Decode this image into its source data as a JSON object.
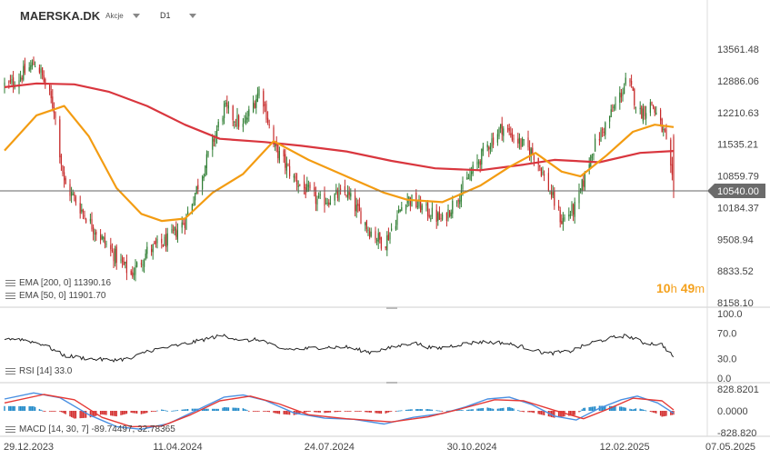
{
  "header": {
    "symbol": "MAERSKA.DK",
    "instrument_type": "Akcje",
    "timeframe": "D1"
  },
  "countdown": {
    "hours": "10",
    "hours_unit": "h",
    "minutes": "49",
    "minutes_unit": "m"
  },
  "legend": {
    "ema200": "EMA [200, 0] 11390.16",
    "ema50": "EMA [50, 0] 11901.70",
    "rsi": "RSI [14] 33.0",
    "macd": "MACD [14, 30, 7] -89.74497, 32.78365"
  },
  "colors": {
    "bull": "#2e7d32",
    "bear": "#c62828",
    "ema200": "#d9363e",
    "ema50": "#f39c12",
    "rsi": "#222222",
    "macd_line": "#4a90e2",
    "signal_line": "#e53935",
    "hist_pos": "#1e88c8",
    "hist_neg": "#d32f2f",
    "price_tag": "#6b6b6b"
  },
  "chart_data": [
    {
      "type": "candlestick",
      "panel": "price",
      "title": "MAERSKA.DK",
      "y_ticks": [
        13561.48,
        12886.06,
        12210.63,
        11535.21,
        10859.79,
        10184.37,
        9508.94,
        8833.52,
        8158.1
      ],
      "ylim": [
        8158.1,
        13561.48
      ],
      "last_price": 10540.0,
      "x_ticks": [
        "29.12.2023",
        "11.04.2024",
        "24.07.2024",
        "30.10.2024",
        "12.02.2025",
        "07.05.2025"
      ],
      "close_anchors": [
        [
          "2024-01-02",
          12800
        ],
        [
          "2024-01-20",
          13300
        ],
        [
          "2024-02-01",
          12300
        ],
        [
          "2024-02-08",
          10700
        ],
        [
          "2024-02-25",
          9900
        ],
        [
          "2024-03-10",
          9300
        ],
        [
          "2024-03-25",
          8750
        ],
        [
          "2024-04-05",
          9250
        ],
        [
          "2024-04-20",
          9500
        ],
        [
          "2024-05-01",
          9900
        ],
        [
          "2024-05-15",
          11100
        ],
        [
          "2024-05-28",
          12300
        ],
        [
          "2024-06-10",
          11900
        ],
        [
          "2024-06-22",
          12750
        ],
        [
          "2024-07-01",
          11500
        ],
        [
          "2024-07-15",
          10800
        ],
        [
          "2024-08-01",
          10300
        ],
        [
          "2024-08-20",
          10500
        ],
        [
          "2024-09-05",
          9700
        ],
        [
          "2024-09-15",
          9400
        ],
        [
          "2024-09-30",
          10400
        ],
        [
          "2024-10-10",
          10200
        ],
        [
          "2024-10-25",
          9900
        ],
        [
          "2024-11-10",
          10700
        ],
        [
          "2024-11-25",
          11500
        ],
        [
          "2024-12-05",
          11900
        ],
        [
          "2024-12-20",
          11500
        ],
        [
          "2024-12-28",
          11300
        ],
        [
          "2025-01-06",
          10600
        ],
        [
          "2025-01-15",
          9900
        ],
        [
          "2025-01-25",
          10200
        ],
        [
          "2025-02-05",
          11400
        ],
        [
          "2025-02-20",
          12300
        ],
        [
          "2025-03-01",
          12900
        ],
        [
          "2025-03-10",
          12200
        ],
        [
          "2025-03-18",
          12400
        ],
        [
          "2025-03-27",
          11700
        ],
        [
          "2025-04-02",
          10540
        ]
      ],
      "series": [
        {
          "name": "EMA [200, 0]",
          "points": [
            [
              "2023-12-29",
              12750
            ],
            [
              "2024-01-20",
              12830
            ],
            [
              "2024-02-15",
              12810
            ],
            [
              "2024-03-10",
              12650
            ],
            [
              "2024-04-05",
              12350
            ],
            [
              "2024-05-01",
              11950
            ],
            [
              "2024-05-25",
              11650
            ],
            [
              "2024-06-25",
              11580
            ],
            [
              "2024-07-20",
              11500
            ],
            [
              "2024-08-20",
              11380
            ],
            [
              "2024-09-20",
              11180
            ],
            [
              "2024-10-20",
              11020
            ],
            [
              "2024-11-20",
              10980
            ],
            [
              "2024-12-20",
              11100
            ],
            [
              "2025-01-10",
              11200
            ],
            [
              "2025-02-10",
              11150
            ],
            [
              "2025-03-10",
              11350
            ],
            [
              "2025-04-02",
              11390
            ]
          ]
        },
        {
          "name": "EMA [50, 0]",
          "points": [
            [
              "2023-12-29",
              11400
            ],
            [
              "2024-01-20",
              12150
            ],
            [
              "2024-02-08",
              12350
            ],
            [
              "2024-02-25",
              11700
            ],
            [
              "2024-03-15",
              10600
            ],
            [
              "2024-04-01",
              10050
            ],
            [
              "2024-04-15",
              9900
            ],
            [
              "2024-05-01",
              9950
            ],
            [
              "2024-05-20",
              10500
            ],
            [
              "2024-06-10",
              10900
            ],
            [
              "2024-07-01",
              11600
            ],
            [
              "2024-07-25",
              11200
            ],
            [
              "2024-08-20",
              10850
            ],
            [
              "2024-09-15",
              10500
            ],
            [
              "2024-10-01",
              10350
            ],
            [
              "2024-10-25",
              10300
            ],
            [
              "2024-11-20",
              10650
            ],
            [
              "2024-12-10",
              11050
            ],
            [
              "2024-12-28",
              11350
            ],
            [
              "2025-01-15",
              10950
            ],
            [
              "2025-01-28",
              10850
            ],
            [
              "2025-02-15",
              11300
            ],
            [
              "2025-03-05",
              11800
            ],
            [
              "2025-03-20",
              11950
            ],
            [
              "2025-04-02",
              11900
            ]
          ]
        }
      ]
    },
    {
      "type": "line",
      "panel": "rsi",
      "y_ticks": [
        100.0,
        70.0,
        30.0,
        0.0
      ],
      "ylim": [
        0,
        100
      ],
      "series": [
        {
          "name": "RSI [14]",
          "points": [
            [
              "2023-12-29",
              62
            ],
            [
              "2024-01-10",
              60
            ],
            [
              "2024-01-25",
              52
            ],
            [
              "2024-02-08",
              35
            ],
            [
              "2024-02-25",
              30
            ],
            [
              "2024-03-10",
              28
            ],
            [
              "2024-03-25",
              30
            ],
            [
              "2024-04-05",
              42
            ],
            [
              "2024-04-20",
              48
            ],
            [
              "2024-05-05",
              55
            ],
            [
              "2024-05-20",
              63
            ],
            [
              "2024-05-28",
              66
            ],
            [
              "2024-06-10",
              58
            ],
            [
              "2024-06-22",
              60
            ],
            [
              "2024-07-05",
              45
            ],
            [
              "2024-07-20",
              45
            ],
            [
              "2024-08-05",
              48
            ],
            [
              "2024-08-20",
              48
            ],
            [
              "2024-09-05",
              40
            ],
            [
              "2024-09-20",
              47
            ],
            [
              "2024-10-05",
              55
            ],
            [
              "2024-10-20",
              45
            ],
            [
              "2024-11-05",
              52
            ],
            [
              "2024-11-20",
              56
            ],
            [
              "2024-12-05",
              55
            ],
            [
              "2024-12-20",
              48
            ],
            [
              "2025-01-05",
              38
            ],
            [
              "2025-01-20",
              41
            ],
            [
              "2025-02-05",
              55
            ],
            [
              "2025-02-20",
              63
            ],
            [
              "2025-03-01",
              66
            ],
            [
              "2025-03-12",
              55
            ],
            [
              "2025-03-25",
              52
            ],
            [
              "2025-04-02",
              33
            ]
          ]
        }
      ]
    },
    {
      "type": "macd",
      "panel": "macd",
      "y_ticks": [
        828.8201,
        0.0,
        -828.82
      ],
      "ylim": [
        -828.82,
        828.8201
      ],
      "series": [
        {
          "name": "MACD [14, 30, 7]",
          "points": [
            [
              "2023-12-29",
              450
            ],
            [
              "2024-01-18",
              680
            ],
            [
              "2024-02-05",
              500
            ],
            [
              "2024-02-25",
              -150
            ],
            [
              "2024-03-15",
              -600
            ],
            [
              "2024-04-01",
              -700
            ],
            [
              "2024-04-20",
              -480
            ],
            [
              "2024-05-10",
              50
            ],
            [
              "2024-05-28",
              520
            ],
            [
              "2024-06-10",
              600
            ],
            [
              "2024-06-25",
              400
            ],
            [
              "2024-07-15",
              -80
            ],
            [
              "2024-08-05",
              -280
            ],
            [
              "2024-08-25",
              -320
            ],
            [
              "2024-09-15",
              -500
            ],
            [
              "2024-10-05",
              -250
            ],
            [
              "2024-10-25",
              -100
            ],
            [
              "2024-11-10",
              150
            ],
            [
              "2024-11-25",
              450
            ],
            [
              "2024-12-10",
              520
            ],
            [
              "2024-12-25",
              250
            ],
            [
              "2025-01-10",
              -200
            ],
            [
              "2025-01-25",
              -350
            ],
            [
              "2025-02-10",
              100
            ],
            [
              "2025-02-25",
              420
            ],
            [
              "2025-03-08",
              560
            ],
            [
              "2025-03-22",
              300
            ],
            [
              "2025-04-02",
              -90
            ]
          ]
        },
        {
          "name": "Signal",
          "points": [
            [
              "2023-12-29",
              300
            ],
            [
              "2024-01-25",
              620
            ],
            [
              "2024-02-15",
              420
            ],
            [
              "2024-03-05",
              -250
            ],
            [
              "2024-03-25",
              -600
            ],
            [
              "2024-04-15",
              -580
            ],
            [
              "2024-05-05",
              -150
            ],
            [
              "2024-05-25",
              380
            ],
            [
              "2024-06-15",
              560
            ],
            [
              "2024-07-05",
              260
            ],
            [
              "2024-07-25",
              -150
            ],
            [
              "2024-08-20",
              -300
            ],
            [
              "2024-09-20",
              -420
            ],
            [
              "2024-10-15",
              -230
            ],
            [
              "2024-11-05",
              50
            ],
            [
              "2024-11-30",
              420
            ],
            [
              "2024-12-20",
              380
            ],
            [
              "2025-01-10",
              20
            ],
            [
              "2025-01-30",
              -300
            ],
            [
              "2025-02-15",
              50
            ],
            [
              "2025-03-05",
              480
            ],
            [
              "2025-03-25",
              380
            ],
            [
              "2025-04-02",
              33
            ]
          ]
        }
      ]
    }
  ]
}
